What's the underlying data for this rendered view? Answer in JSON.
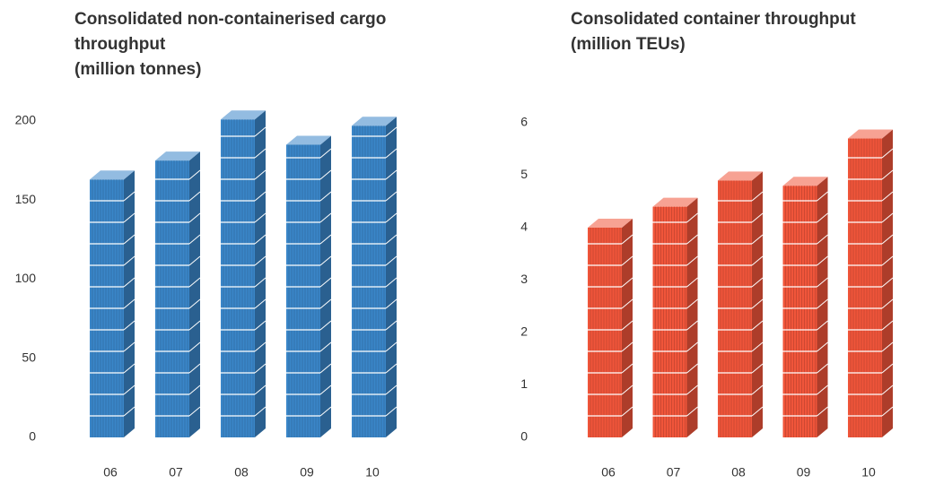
{
  "chart_data": [
    {
      "type": "bar3d",
      "title": "Consolidated non-containerised cargo throughput",
      "subtitle": "(million tonnes)",
      "categories": [
        "06",
        "07",
        "08",
        "09",
        "10"
      ],
      "values": [
        163,
        175,
        201,
        185,
        197
      ],
      "color": "#3a86c8",
      "ylim": [
        0,
        200
      ],
      "yticks": [
        0,
        50,
        100,
        150,
        200
      ],
      "grid": false
    },
    {
      "type": "bar3d",
      "title": "Consolidated container throughput",
      "subtitle": "(million TEUs)",
      "categories": [
        "06",
        "07",
        "08",
        "09",
        "10"
      ],
      "values": [
        4.0,
        4.4,
        4.9,
        4.8,
        5.7
      ],
      "color": "#f0553a",
      "ylim": [
        0,
        6
      ],
      "yticks": [
        0,
        1,
        2,
        3,
        4,
        5,
        6
      ],
      "grid": false
    }
  ]
}
